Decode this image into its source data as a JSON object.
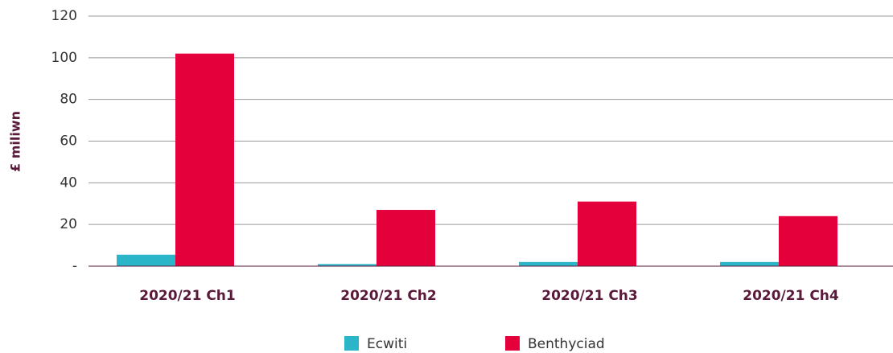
{
  "chart_data": {
    "type": "bar",
    "y_label": "£ miliwn",
    "categories": [
      "2020/21 Ch1",
      "2020/21 Ch2",
      "2020/21 Ch3",
      "2020/21 Ch4"
    ],
    "series": [
      {
        "name": "Ecwiti",
        "color": "#2ab5c8",
        "values": [
          5.5,
          1,
          2,
          2
        ]
      },
      {
        "name": "Benthyciad",
        "color": "#e4003b",
        "values": [
          102,
          27,
          31,
          24
        ]
      }
    ],
    "ylim": [
      0,
      120
    ],
    "yticks": [
      {
        "value": 0,
        "label": "-"
      },
      20,
      40,
      60,
      80,
      100,
      120
    ],
    "grid": true
  }
}
